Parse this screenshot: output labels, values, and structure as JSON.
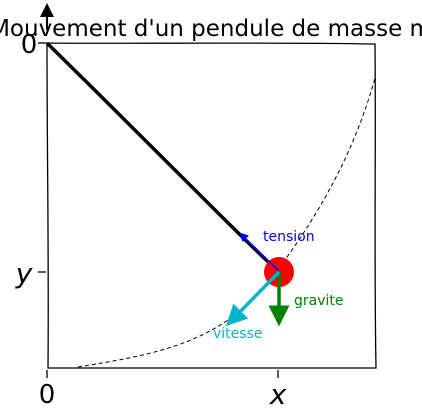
{
  "title": "Mouvement d'un pendule de masse m",
  "axes": {
    "origin_x_label": "0",
    "origin_y_label": "0",
    "x_label": "x",
    "y_label": "y"
  },
  "forces": {
    "tension": {
      "label": "tension",
      "color": "#0000ee"
    },
    "gravity": {
      "label": "gravite",
      "color": "#008000"
    },
    "velocity": {
      "label": "vitesse",
      "color": "#00b4c8"
    }
  },
  "colors": {
    "rod": "#000000",
    "mass": "#ff0000",
    "frame": "#000000",
    "trajectory": "#000000"
  }
}
